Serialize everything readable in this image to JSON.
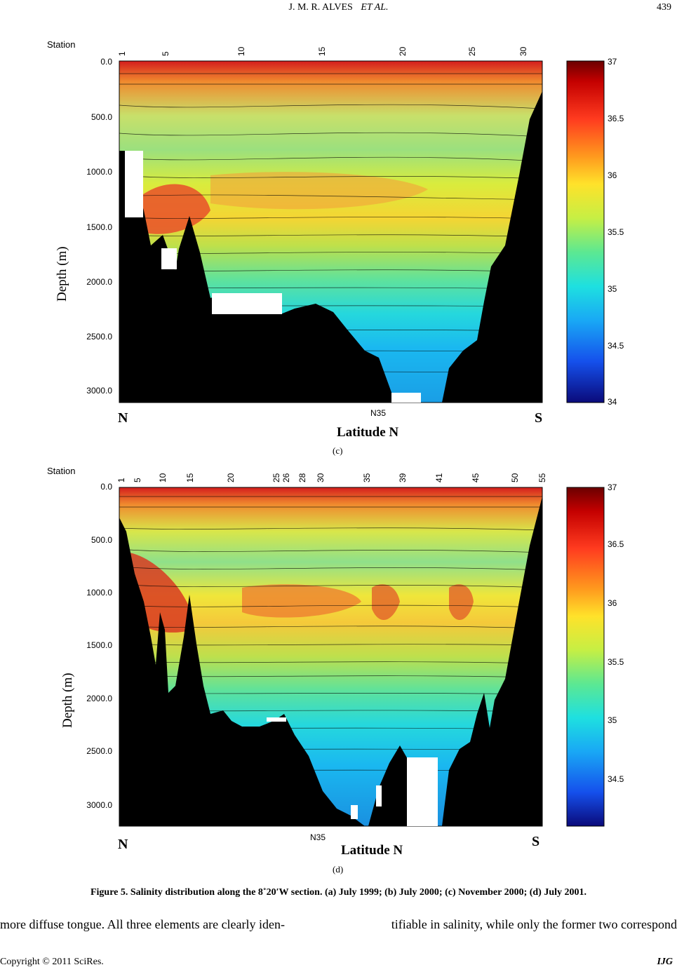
{
  "header": {
    "running_title": "J. M. R. ALVES",
    "running_title_italic": "ET AL.",
    "page_number": "439"
  },
  "panels": [
    {
      "id": "c",
      "label": "(c)",
      "station_title": "Station",
      "stations": [
        "1",
        "5",
        "10",
        "15",
        "20",
        "25",
        "30"
      ],
      "depth_ticks": [
        "0.0",
        "500.0",
        "1000.0",
        "1500.0",
        "2000.0",
        "2500.0",
        "3000.0"
      ],
      "ylabel": "Depth (m)",
      "xlabel": "Latitude N",
      "north": "N",
      "south": "S",
      "mid_tick": "N35",
      "colorbar_ticks": [
        "37",
        "36.5",
        "36",
        "35.5",
        "35",
        "34.5",
        "34"
      ]
    },
    {
      "id": "d",
      "label": "(d)",
      "station_title": "Station",
      "stations": [
        "1",
        "5",
        "10",
        "15",
        "20",
        "25",
        "26",
        "28",
        "30",
        "35",
        "39",
        "41",
        "45",
        "50",
        "55"
      ],
      "depth_ticks": [
        "0.0",
        "500.0",
        "1000.0",
        "1500.0",
        "2000.0",
        "2500.0",
        "3000.0"
      ],
      "ylabel": "Depth (m)",
      "xlabel": "Latitude N",
      "north": "N",
      "south": "S",
      "mid_tick": "N35",
      "colorbar_ticks": [
        "37",
        "36.5",
        "36",
        "35.5",
        "35",
        "34.5"
      ]
    }
  ],
  "figure_caption": "Figure 5. Salinity distribution along the 8˚20′W section. (a) July 1999; (b) July 2000; (c) November 2000; (d) July 2001.",
  "body_text": {
    "left": "more diffuse tongue. All three elements are clearly iden-",
    "right": "tifiable in salinity, while only the former two correspond"
  },
  "footer": {
    "copyright": "Copyright © 2011 SciRes.",
    "journal": "IJG"
  }
}
